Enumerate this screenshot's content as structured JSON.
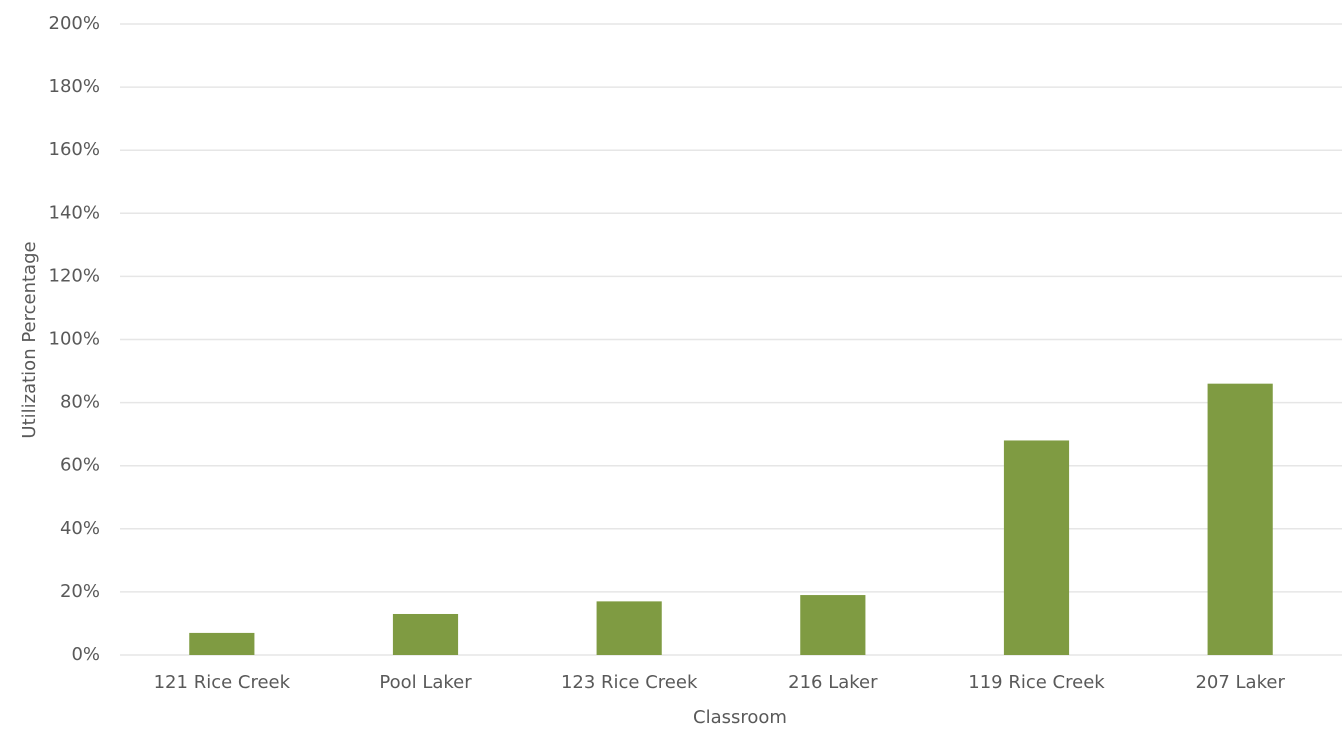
{
  "chart_data": {
    "type": "bar",
    "x_label": "Classroom",
    "y_label": "Utilization Percentage",
    "categories": [
      "121 Rice Creek",
      "Pool Laker",
      "123 Rice Creek",
      "216 Laker",
      "119 Rice Creek",
      "207 Laker"
    ],
    "values": [
      7,
      13,
      17,
      19,
      68,
      86
    ],
    "color": "#7f9b42",
    "ylim": [
      0,
      200
    ],
    "yticks": [
      {
        "value": 0,
        "label": "0%"
      },
      {
        "value": 20,
        "label": "20%"
      },
      {
        "value": 40,
        "label": "40%"
      },
      {
        "value": 60,
        "label": "60%"
      },
      {
        "value": 80,
        "label": "80%"
      },
      {
        "value": 100,
        "label": "100%"
      },
      {
        "value": 120,
        "label": "120%"
      },
      {
        "value": 140,
        "label": "140%"
      },
      {
        "value": 160,
        "label": "160%"
      },
      {
        "value": 180,
        "label": "180%"
      },
      {
        "value": 200,
        "label": "200%"
      }
    ],
    "grid": true
  }
}
